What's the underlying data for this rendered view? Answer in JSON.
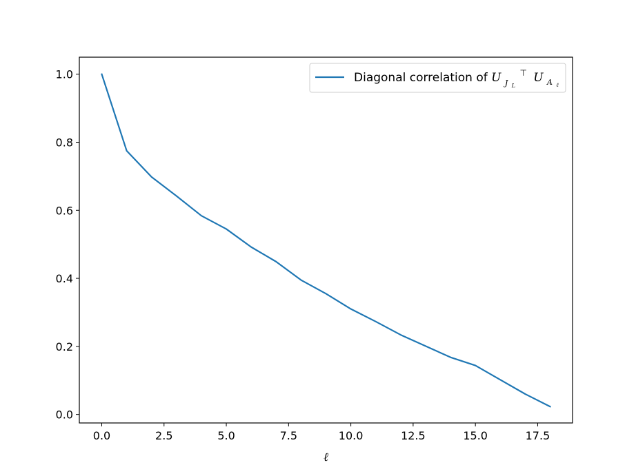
{
  "chart_data": {
    "type": "line",
    "xlabel": "ℓ",
    "ylabel": "",
    "title": "",
    "xlim": [
      -0.9,
      18.9
    ],
    "ylim": [
      -0.025,
      1.05
    ],
    "xticks": [
      0.0,
      2.5,
      5.0,
      7.5,
      10.0,
      12.5,
      15.0,
      17.5
    ],
    "xtick_labels": [
      "0.0",
      "2.5",
      "5.0",
      "7.5",
      "10.0",
      "12.5",
      "15.0",
      "17.5"
    ],
    "yticks": [
      0.0,
      0.2,
      0.4,
      0.6,
      0.8,
      1.0
    ],
    "ytick_labels": [
      "0.0",
      "0.2",
      "0.4",
      "0.6",
      "0.8",
      "1.0"
    ],
    "grid": false,
    "legend_position": "top-right",
    "series": [
      {
        "name": "Diagonal correlation of U_{J_L}^⊤ U_{A_ℓ}",
        "legend_parts": {
          "prefix": "Diagonal correlation of ",
          "u1": "U",
          "sub1": "J",
          "subsub1": "L",
          "sup1": "⊤",
          "u2": "U",
          "sub2": "A",
          "subsub2": "ℓ"
        },
        "color": "#1f77b4",
        "x": [
          0,
          1,
          2,
          3,
          4,
          5,
          6,
          7,
          8,
          9,
          10,
          11,
          12,
          13,
          14,
          15,
          16,
          17,
          18
        ],
        "values": [
          1.0,
          0.775,
          0.698,
          0.642,
          0.584,
          0.545,
          0.492,
          0.449,
          0.395,
          0.355,
          0.31,
          0.273,
          0.234,
          0.201,
          0.168,
          0.144,
          0.102,
          0.06,
          0.023
        ]
      }
    ]
  }
}
